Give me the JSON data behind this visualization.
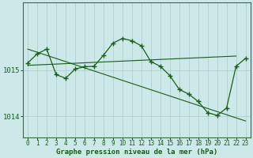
{
  "background_color": "#cce8e8",
  "plot_bg_color": "#cce8e8",
  "line_color": "#1a5c1a",
  "marker_color": "#1a5c1a",
  "xlabel": "Graphe pression niveau de la mer (hPa)",
  "xlabel_fontsize": 6.5,
  "ylabel_fontsize": 6.5,
  "tick_fontsize": 5.5,
  "xlim": [
    -0.5,
    23.5
  ],
  "ylim": [
    1013.55,
    1016.45
  ],
  "yticks": [
    1014,
    1015
  ],
  "xticks": [
    0,
    1,
    2,
    3,
    4,
    5,
    6,
    7,
    8,
    9,
    10,
    11,
    12,
    13,
    14,
    15,
    16,
    17,
    18,
    19,
    20,
    21,
    22,
    23
  ],
  "grid_color": "#b0c8c8",
  "series1_x": [
    0,
    1,
    2,
    3,
    4,
    5,
    6,
    7,
    8,
    9,
    10,
    11,
    12,
    13,
    14,
    15,
    16,
    17,
    18,
    19,
    20,
    21,
    22,
    23
  ],
  "series1_y": [
    1015.15,
    1015.35,
    1015.45,
    1014.9,
    1014.82,
    1015.02,
    1015.07,
    1015.08,
    1015.32,
    1015.58,
    1015.68,
    1015.63,
    1015.52,
    1015.18,
    1015.08,
    1014.88,
    1014.58,
    1014.48,
    1014.32,
    1014.08,
    1014.02,
    1014.18,
    1015.08,
    1015.25
  ],
  "trend1_x": [
    0,
    23
  ],
  "trend1_y": [
    1015.45,
    1013.9
  ],
  "trend2_x": [
    0,
    22
  ],
  "trend2_y": [
    1015.1,
    1015.3
  ],
  "figwidth": 3.2,
  "figheight": 2.0,
  "dpi": 100
}
